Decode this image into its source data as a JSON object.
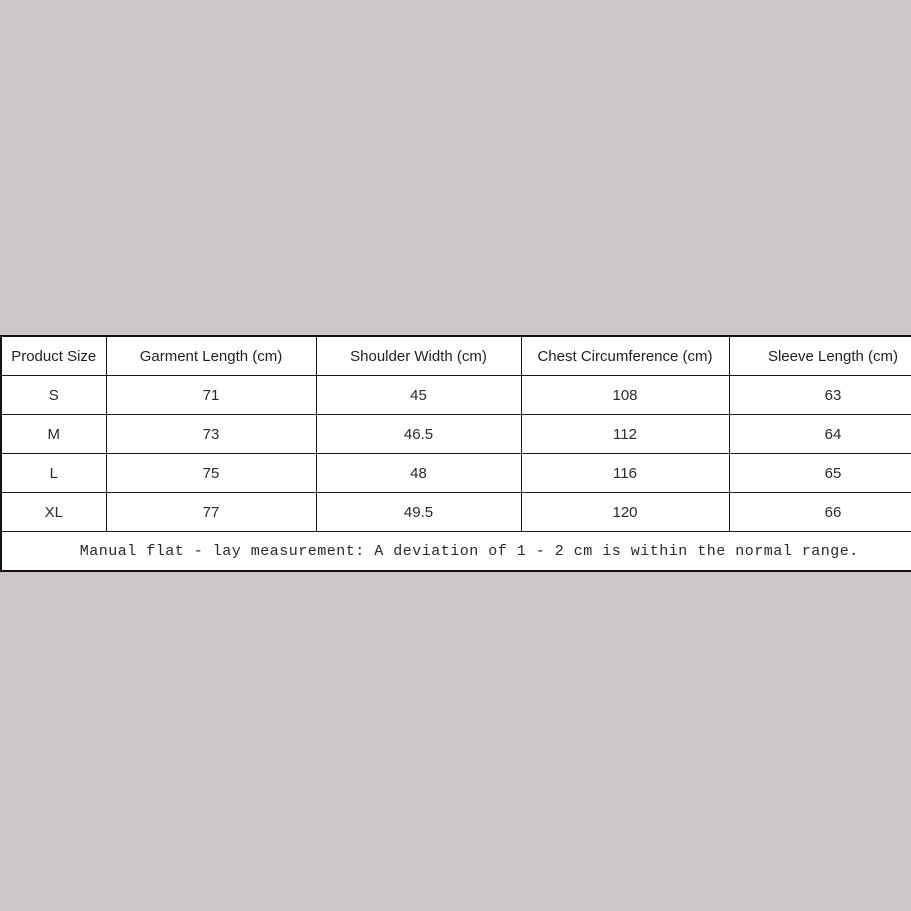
{
  "background_color": "#cdc8c8",
  "table": {
    "columns": [
      "Product Size",
      "Garment Length (cm)",
      "Shoulder Width (cm)",
      "Chest Circumference (cm)",
      "Sleeve Length (cm)"
    ],
    "rows": [
      [
        "S",
        "71",
        "45",
        "108",
        "63"
      ],
      [
        "M",
        "73",
        "46.5",
        "112",
        "64"
      ],
      [
        "L",
        "75",
        "48",
        "116",
        "65"
      ],
      [
        "XL",
        "77",
        "49.5",
        "120",
        "66"
      ]
    ],
    "note": "Manual flat - lay measurement: A deviation of 1 - 2 cm is within the normal range."
  }
}
